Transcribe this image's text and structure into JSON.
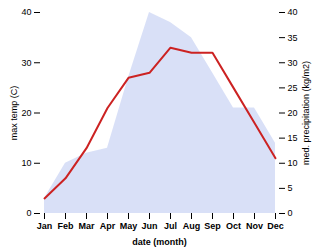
{
  "chart_data": {
    "type": "line",
    "xlabel": "date (month)",
    "ylabel": "max temp (C)",
    "y2label": "med. precipitation (kg/m2)",
    "categories": [
      "Jan",
      "Feb",
      "Mar",
      "Apr",
      "May",
      "Jun",
      "Jul",
      "Aug",
      "Sep",
      "Oct",
      "Nov",
      "Dec"
    ],
    "series": [
      {
        "type": "area",
        "color": "#aabbee",
        "axis": "y2",
        "values": [
          3,
          10,
          12,
          13,
          27,
          40,
          38,
          35,
          28,
          21,
          21,
          14
        ]
      },
      {
        "type": "line",
        "color": "#cc2222",
        "values": [
          3,
          7,
          13,
          21,
          27,
          28,
          33,
          32,
          32,
          25,
          18,
          11
        ]
      }
    ],
    "ylim": [
      0,
      40
    ],
    "yticks": [
      0,
      10,
      20,
      30,
      40
    ],
    "y2lim": [
      0,
      40
    ],
    "y2ticks": [
      0,
      5,
      10,
      15,
      20,
      25,
      30,
      35,
      40
    ]
  }
}
